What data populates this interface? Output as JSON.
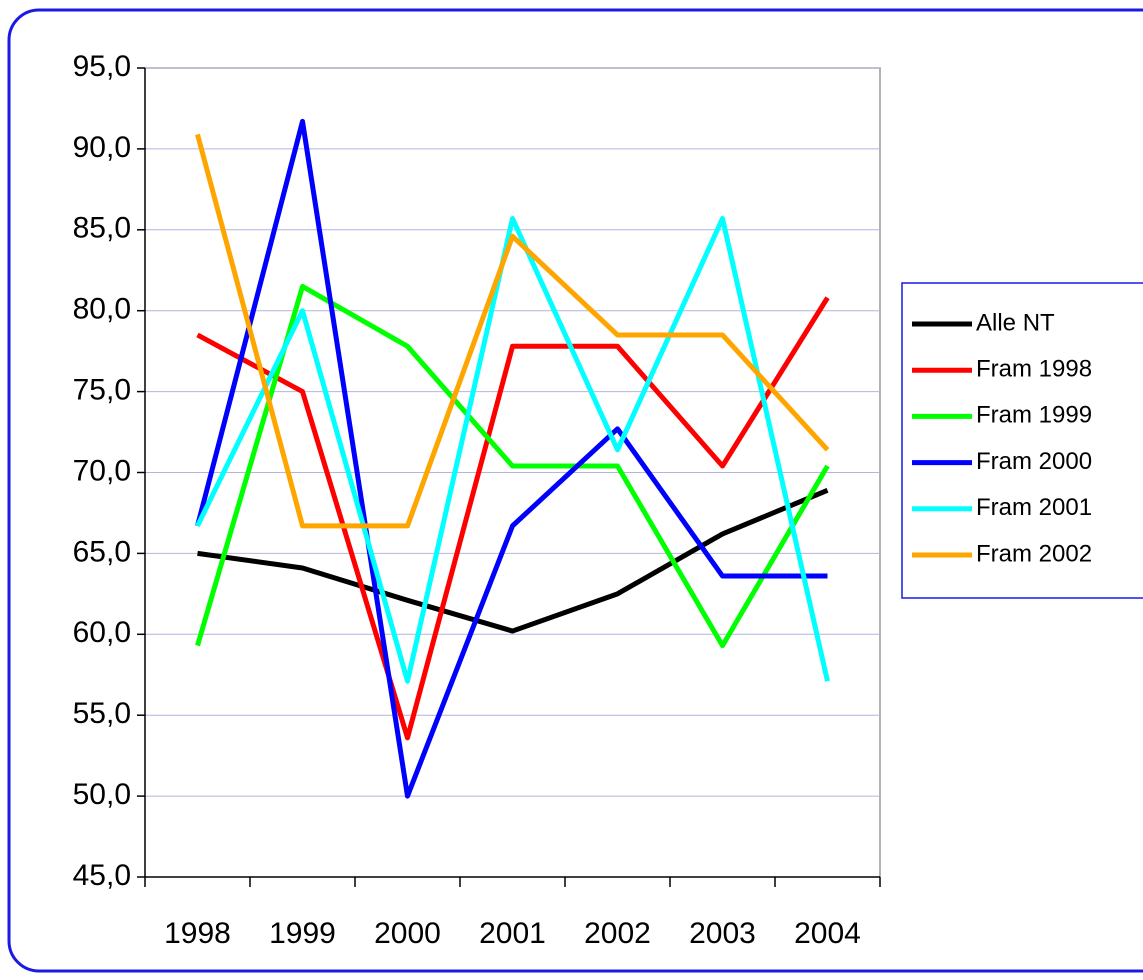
{
  "chart_data": {
    "type": "line",
    "categories": [
      "1998",
      "1999",
      "2000",
      "2001",
      "2002",
      "2003",
      "2004"
    ],
    "series": [
      {
        "name": "Alle NT",
        "color": "#000000",
        "values": [
          65.0,
          64.1,
          62.1,
          60.2,
          62.5,
          66.2,
          68.9
        ]
      },
      {
        "name": "Fram 1998",
        "color": "#ff0000",
        "values": [
          78.5,
          75.0,
          53.6,
          77.8,
          77.8,
          70.4,
          80.8
        ]
      },
      {
        "name": "Fram 1999",
        "color": "#00ff00",
        "values": [
          59.3,
          81.5,
          77.8,
          70.4,
          70.4,
          59.3,
          70.4
        ]
      },
      {
        "name": "Fram 2000",
        "color": "#0000ff",
        "values": [
          66.7,
          91.7,
          50.0,
          66.7,
          72.7,
          63.6,
          63.6
        ]
      },
      {
        "name": "Fram 2001",
        "color": "#00ffff",
        "values": [
          66.7,
          80.0,
          57.1,
          85.7,
          71.4,
          85.7,
          57.1
        ]
      },
      {
        "name": "Fram 2002",
        "color": "#ffa500",
        "values": [
          90.9,
          66.7,
          66.7,
          84.6,
          78.5,
          78.5,
          71.4
        ]
      }
    ],
    "ylim": [
      45,
      95
    ],
    "yticks": [
      {
        "value": 45,
        "label": "45,0"
      },
      {
        "value": 50,
        "label": "50,0"
      },
      {
        "value": 55,
        "label": "55,0"
      },
      {
        "value": 60,
        "label": "60,0"
      },
      {
        "value": 65,
        "label": "65,0"
      },
      {
        "value": 70,
        "label": "70,0"
      },
      {
        "value": 75,
        "label": "75,0"
      },
      {
        "value": 80,
        "label": "80,0"
      },
      {
        "value": 85,
        "label": "85,0"
      },
      {
        "value": 90,
        "label": "90,0"
      },
      {
        "value": 95,
        "label": "95,0"
      }
    ],
    "grid": true,
    "legend": "right"
  }
}
